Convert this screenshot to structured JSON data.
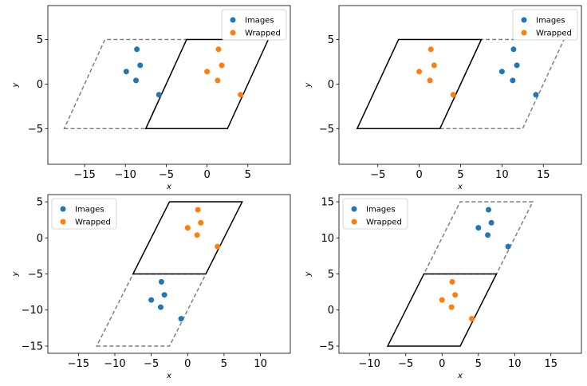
{
  "colors": {
    "images": "#1f77b4",
    "wrapped": "#ff7f0e",
    "cell": "#000000",
    "image_cell": "#808080"
  },
  "chart_data": [
    {
      "type": "scatter",
      "xlabel": "x",
      "ylabel": "y",
      "xlim": [
        -19.5,
        10.2
      ],
      "ylim": [
        -9,
        8.8
      ],
      "xticks": [
        -15,
        -10,
        -5,
        0,
        5
      ],
      "yticks": [
        -5,
        0,
        5
      ],
      "legend": "top-right",
      "grid": false,
      "series": [
        {
          "name": "Images",
          "color": "#1f77b4",
          "points": [
            [
              -8.6,
              3.9
            ],
            [
              -8.2,
              2.1
            ],
            [
              -9.9,
              1.4
            ],
            [
              -8.7,
              0.4
            ],
            [
              -5.9,
              -1.2
            ]
          ]
        },
        {
          "name": "Wrapped",
          "color": "#ff7f0e",
          "points": [
            [
              1.4,
              3.9
            ],
            [
              1.8,
              2.1
            ],
            [
              0.0,
              1.4
            ],
            [
              1.3,
              0.4
            ],
            [
              4.1,
              -1.2
            ]
          ]
        }
      ],
      "cell": [
        [
          -7.5,
          -5
        ],
        [
          2.5,
          -5
        ],
        [
          7.5,
          5
        ],
        [
          -2.5,
          5
        ]
      ],
      "image_cell": [
        [
          -17.5,
          -5
        ],
        [
          -7.5,
          -5
        ],
        [
          -2.5,
          5
        ],
        [
          -12.5,
          5
        ]
      ]
    },
    {
      "type": "scatter",
      "xlabel": "x",
      "ylabel": "y",
      "xlim": [
        -9.7,
        19.6
      ],
      "ylim": [
        -9,
        8.8
      ],
      "xticks": [
        -5,
        0,
        5,
        10,
        15
      ],
      "yticks": [
        -5,
        0,
        5
      ],
      "legend": "top-right",
      "grid": false,
      "series": [
        {
          "name": "Images",
          "color": "#1f77b4",
          "points": [
            [
              11.4,
              3.9
            ],
            [
              11.8,
              2.1
            ],
            [
              10.0,
              1.4
            ],
            [
              11.3,
              0.4
            ],
            [
              14.1,
              -1.2
            ]
          ]
        },
        {
          "name": "Wrapped",
          "color": "#ff7f0e",
          "points": [
            [
              1.4,
              3.9
            ],
            [
              1.8,
              2.1
            ],
            [
              0.0,
              1.4
            ],
            [
              1.3,
              0.4
            ],
            [
              4.1,
              -1.2
            ]
          ]
        }
      ],
      "cell": [
        [
          -7.5,
          -5
        ],
        [
          2.5,
          -5
        ],
        [
          7.5,
          5
        ],
        [
          -2.5,
          5
        ]
      ],
      "image_cell": [
        [
          2.5,
          -5
        ],
        [
          12.5,
          -5
        ],
        [
          17.5,
          5
        ],
        [
          7.5,
          5
        ]
      ]
    },
    {
      "type": "scatter",
      "xlabel": "x",
      "ylabel": "y",
      "xlim": [
        -19.2,
        14.1
      ],
      "ylim": [
        -16,
        6
      ],
      "xticks": [
        -15,
        -10,
        -5,
        0,
        5,
        10
      ],
      "yticks": [
        -15,
        -10,
        -5,
        0,
        5
      ],
      "legend": "top-left",
      "grid": false,
      "series": [
        {
          "name": "Images",
          "color": "#1f77b4",
          "points": [
            [
              -3.6,
              -6.1
            ],
            [
              -3.2,
              -7.9
            ],
            [
              -5.0,
              -8.6
            ],
            [
              -3.7,
              -9.6
            ],
            [
              -0.9,
              -11.2
            ]
          ]
        },
        {
          "name": "Wrapped",
          "color": "#ff7f0e",
          "points": [
            [
              1.4,
              3.9
            ],
            [
              1.8,
              2.1
            ],
            [
              0.0,
              1.4
            ],
            [
              1.3,
              0.4
            ],
            [
              4.1,
              -1.2
            ]
          ]
        }
      ],
      "cell": [
        [
          -7.5,
          -5
        ],
        [
          2.5,
          -5
        ],
        [
          7.5,
          5
        ],
        [
          -2.5,
          5
        ]
      ],
      "image_cell": [
        [
          -12.5,
          -15
        ],
        [
          -2.5,
          -15
        ],
        [
          2.5,
          -5
        ],
        [
          -7.5,
          -5
        ]
      ]
    },
    {
      "type": "scatter",
      "xlabel": "x",
      "ylabel": "y",
      "xlim": [
        -14.2,
        19.2
      ],
      "ylim": [
        -6,
        16
      ],
      "xticks": [
        -10,
        -5,
        0,
        5,
        10,
        15
      ],
      "yticks": [
        -5,
        0,
        5,
        10,
        15
      ],
      "legend": "top-left",
      "grid": false,
      "series": [
        {
          "name": "Images",
          "color": "#1f77b4",
          "points": [
            [
              6.4,
              13.9
            ],
            [
              6.8,
              12.1
            ],
            [
              5.0,
              11.4
            ],
            [
              6.3,
              10.4
            ],
            [
              9.1,
              8.8
            ]
          ]
        },
        {
          "name": "Wrapped",
          "color": "#ff7f0e",
          "points": [
            [
              1.4,
              3.9
            ],
            [
              1.8,
              2.1
            ],
            [
              0.0,
              1.4
            ],
            [
              1.3,
              0.4
            ],
            [
              4.1,
              -1.2
            ]
          ]
        }
      ],
      "cell": [
        [
          -7.5,
          -5
        ],
        [
          2.5,
          -5
        ],
        [
          7.5,
          5
        ],
        [
          -2.5,
          5
        ]
      ],
      "image_cell": [
        [
          -2.5,
          5
        ],
        [
          7.5,
          5
        ],
        [
          12.5,
          15
        ],
        [
          2.5,
          15
        ]
      ]
    }
  ]
}
